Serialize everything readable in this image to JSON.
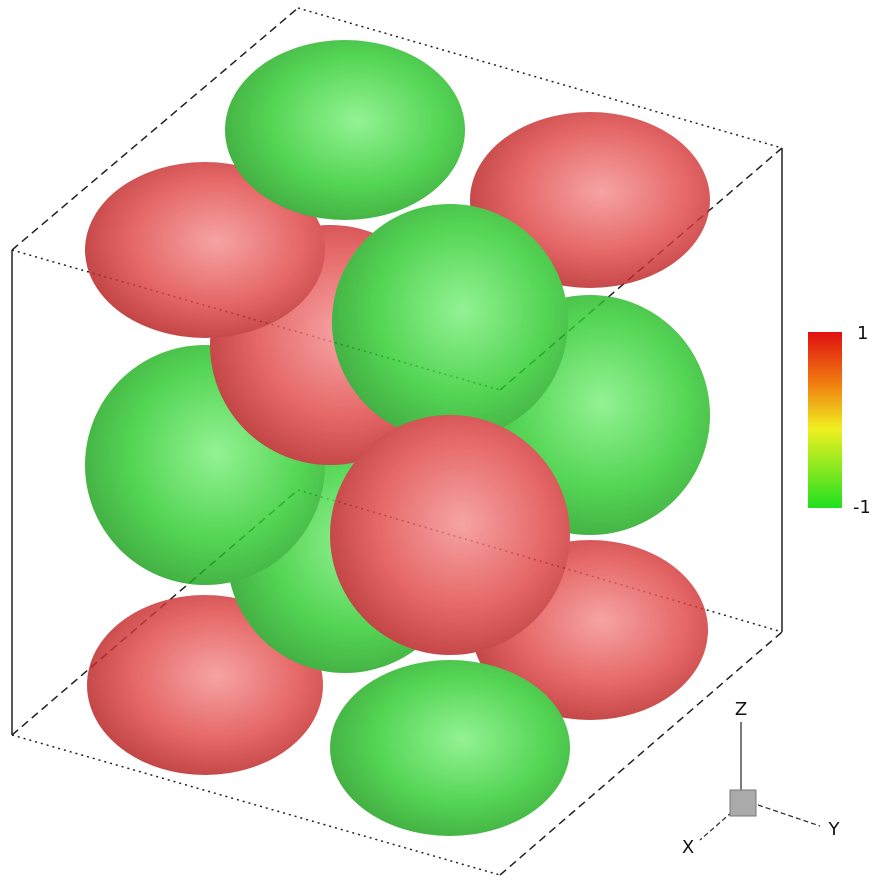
{
  "colorbar": {
    "max_label": "1",
    "min_label": "-1"
  },
  "axes_triad": {
    "x_label": "X",
    "y_label": "Y",
    "z_label": "Z"
  }
}
